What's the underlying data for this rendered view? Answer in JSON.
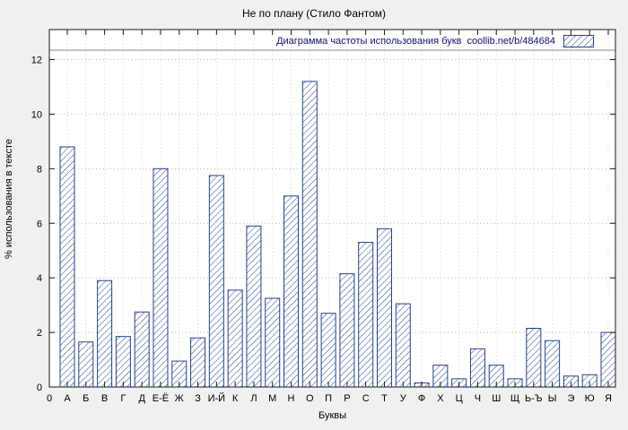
{
  "chart_data": {
    "type": "bar",
    "title": "Не по плану (Стило Фантом)",
    "legend_label": "Диаграмма частоты использования букв  coollib.net/b/484684",
    "xlabel": "Буквы",
    "ylabel": "% использования в тексте",
    "origin_label": "0",
    "categories": [
      "А",
      "Б",
      "В",
      "Г",
      "Д",
      "Е-Ё",
      "Ж",
      "З",
      "И-Й",
      "К",
      "Л",
      "М",
      "Н",
      "О",
      "П",
      "Р",
      "С",
      "Т",
      "У",
      "Ф",
      "Х",
      "Ц",
      "Ч",
      "Ш",
      "Щ",
      "Ь-Ъ",
      "Ы",
      "Э",
      "Ю",
      "Я"
    ],
    "values": [
      8.8,
      1.65,
      3.9,
      1.85,
      2.75,
      8.0,
      0.95,
      1.8,
      7.75,
      3.55,
      5.9,
      3.25,
      7.0,
      11.2,
      2.7,
      4.15,
      5.3,
      5.8,
      3.05,
      0.15,
      0.8,
      0.3,
      1.4,
      0.8,
      0.3,
      2.15,
      1.7,
      0.4,
      0.45,
      2.0
    ],
    "yticks": [
      0,
      2,
      4,
      6,
      8,
      10,
      12
    ],
    "ylim": [
      0,
      13.1
    ],
    "grid": true,
    "legend_position": "top-right",
    "bar_color": "#26418f",
    "bar_fill_style": "diagonal-hatch",
    "plot_background": "#ffffff",
    "canvas_background": "#f0f0f0"
  }
}
